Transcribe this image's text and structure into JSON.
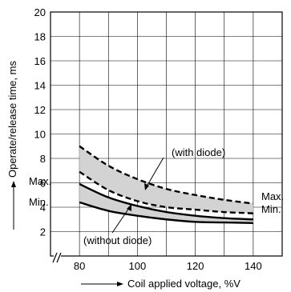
{
  "chart_data": {
    "type": "line",
    "title": "",
    "xlabel": "Coil applied voltage, %V",
    "ylabel": "Operate/release time, ms",
    "xlim": [
      70,
      150
    ],
    "ylim": [
      0,
      20
    ],
    "x_ticks": [
      80,
      100,
      120,
      140
    ],
    "y_ticks": [
      2,
      4,
      6,
      8,
      10,
      12,
      14,
      16,
      18,
      20
    ],
    "x_axis_break": true,
    "grid": true,
    "series": [
      {
        "name": "",
        "group": "with diode",
        "bound": "Max.",
        "style": "dashed",
        "x": [
          80,
          90,
          100,
          110,
          120,
          130,
          140
        ],
        "y": [
          9.0,
          7.4,
          6.3,
          5.5,
          5.0,
          4.6,
          4.3
        ]
      },
      {
        "name": "",
        "group": "with diode",
        "bound": "Min.",
        "style": "dashed",
        "x": [
          80,
          90,
          100,
          110,
          120,
          130,
          140
        ],
        "y": [
          6.9,
          5.4,
          4.5,
          4.0,
          3.8,
          3.6,
          3.5
        ]
      },
      {
        "name": "",
        "group": "without diode",
        "bound": "Max.",
        "style": "solid",
        "x": [
          80,
          90,
          100,
          110,
          120,
          130,
          140
        ],
        "y": [
          5.9,
          4.8,
          4.1,
          3.6,
          3.3,
          3.1,
          3.0
        ]
      },
      {
        "name": "",
        "group": "without diode",
        "bound": "Min.",
        "style": "solid",
        "x": [
          80,
          90,
          100,
          110,
          120,
          130,
          140
        ],
        "y": [
          4.4,
          3.7,
          3.3,
          3.0,
          2.8,
          2.75,
          2.7
        ]
      }
    ],
    "annotations": {
      "with_diode": "(with diode)",
      "without_diode": "(without diode)",
      "left_max": "Max.",
      "left_min": "Min.",
      "right_max": "Max.",
      "right_min": "Min."
    },
    "colors": {
      "band_fill": "#d3d3d3",
      "line": "#000000",
      "grid": "#000000"
    }
  }
}
